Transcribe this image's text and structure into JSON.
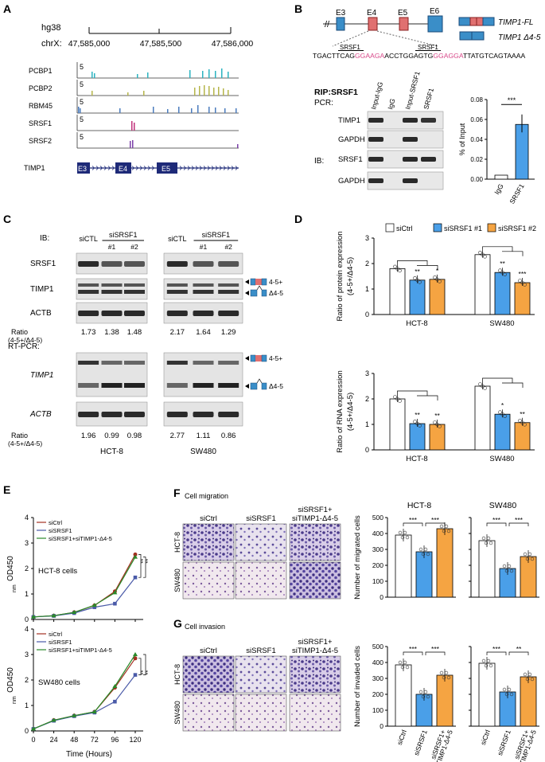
{
  "panels": {
    "A": {
      "letter": "A",
      "genome": "hg38",
      "chrom": "chrX:",
      "coords": [
        "47,585,000",
        "47,585,500",
        "47,586,000"
      ],
      "track_scale": "5",
      "tracks": [
        "PCBP1",
        "PCBP2",
        "RBM45",
        "SRSF1",
        "SRSF2"
      ],
      "gene": "TIMP1",
      "exons": [
        "E3",
        "E4",
        "E5"
      ],
      "track_colors": [
        "#2bb3c0",
        "#b5b54a",
        "#4a7bbd",
        "#c0307a",
        "#7b3fa8"
      ]
    },
    "B": {
      "letter": "B",
      "exons": [
        "E3",
        "E4",
        "E5",
        "E6"
      ],
      "isoform_fl": "TIMP1-FL",
      "isoform_d": "TIMP1 Δ4-5",
      "seq_left": "TGACTTCAG",
      "motif": "GGAAGA",
      "seq_mid": "ACCTGGAGTG",
      "motif2": "GGAGGA",
      "seq_right": "TTATGTCAGTAAAA",
      "motif_label": "SRSF1",
      "rip_title": "RIP:SRSF1",
      "pcr_label": "PCR:",
      "ib_label": "IB:",
      "lanes": [
        "Input-IgG",
        "IgG",
        "Input-SRSF1",
        "SRSF1"
      ],
      "rows": [
        "TIMP1",
        "GAPDH",
        "SRSF1",
        "GAPDH"
      ],
      "bar": {
        "ylabel": "% of Input",
        "yticks": [
          "0.00",
          "0.02",
          "0.04",
          "0.06",
          "0.08"
        ],
        "categories": [
          "IgG",
          "SRSF1"
        ],
        "sig": "***"
      }
    },
    "C": {
      "letter": "C",
      "ib": "IB:",
      "rtpcr": "RT-PCR:",
      "sictl": "siCTL",
      "sisrsf1": "siSRSF1",
      "n1": "#1",
      "n2": "#2",
      "ib_rows": [
        "SRSF1",
        "TIMP1",
        "ACTB"
      ],
      "pcr_rows": [
        "TIMP1",
        "ACTB"
      ],
      "ratio_label": "Ratio",
      "ratio_sub": "(4-5+/Δ4-5)",
      "protein_ratios": [
        "1.73",
        "1.38",
        "1.48",
        "2.17",
        "1.64",
        "1.29"
      ],
      "rna_ratios": [
        "1.96",
        "0.99",
        "0.98",
        "2.77",
        "1.11",
        "0.86"
      ],
      "cells": [
        "HCT-8",
        "SW480"
      ],
      "iso_plus": "4-5+",
      "iso_minus": "Δ4-5"
    },
    "D": {
      "letter": "D",
      "legend": [
        "siCtrl",
        "siSRSF1 #1",
        "siSRSF1 #2"
      ],
      "top_ylabel": "Ratio of  protein expression",
      "top_ysub": "(4-5+/Δ4-5)",
      "bot_ylabel": "Ratio of RNA expression",
      "bot_ysub": "(4-5+/Δ4-5)",
      "yticks": [
        "0",
        "1",
        "2",
        "3"
      ],
      "groups": [
        "HCT-8",
        "SW480"
      ],
      "sig_top": [
        "**",
        "*",
        "**",
        "***"
      ],
      "sig_bot": [
        "**",
        "**",
        "*",
        "**"
      ]
    },
    "E": {
      "letter": "E",
      "ylabel": "OD450",
      "ysub": "nm",
      "xlabel": "Time (Hours)",
      "xticks": [
        "0",
        "24",
        "48",
        "72",
        "96",
        "120"
      ],
      "legend": [
        "siCtrl",
        "siSRSF1",
        "siSRSF1+siTIMP1-Δ4-5"
      ],
      "cell1": "HCT-8 cells",
      "cell2": "SW480 cells",
      "yticks": [
        "0",
        "1",
        "2",
        "3",
        "4"
      ],
      "sig": [
        "**",
        "**"
      ]
    },
    "F": {
      "letter": "F",
      "title": "Cell migration",
      "conds": [
        "siCtrl",
        "siSRSF1",
        "siSRSF1+",
        "siTIMP1-Δ4-5"
      ],
      "rows": [
        "HCT-8",
        "SW480"
      ],
      "ylabel": "Number of migrated cells",
      "titles": [
        "HCT-8",
        "SW480"
      ],
      "yticks": [
        "0",
        "100",
        "200",
        "300",
        "400",
        "500"
      ],
      "sig": [
        "***",
        "***",
        "***",
        "***"
      ]
    },
    "G": {
      "letter": "G",
      "title": "Cell invasion",
      "ylabel": "Number of invaded cells",
      "yticks": [
        "0",
        "100",
        "200",
        "300",
        "400",
        "500"
      ],
      "sig": [
        "***",
        "***",
        "***",
        "**"
      ],
      "xcats": [
        "siCtrl",
        "siSRSF1",
        "siSRSF1+",
        "siTIMP1-Δ4-5"
      ]
    }
  },
  "chart_data": [
    {
      "type": "bar",
      "panel": "B",
      "categories": [
        "IgG",
        "SRSF1"
      ],
      "values": [
        0.004,
        0.055
      ],
      "ylim": [
        0,
        0.08
      ],
      "ylabel": "% of Input"
    },
    {
      "type": "bar",
      "panel": "D-protein",
      "categories": [
        "HCT-8",
        "SW480"
      ],
      "series": [
        {
          "name": "siCtrl",
          "values": [
            1.8,
            2.35
          ]
        },
        {
          "name": "siSRSF1 #1",
          "values": [
            1.35,
            1.65
          ]
        },
        {
          "name": "siSRSF1 #2",
          "values": [
            1.38,
            1.25
          ]
        }
      ],
      "ylim": [
        0,
        3
      ]
    },
    {
      "type": "bar",
      "panel": "D-RNA",
      "categories": [
        "HCT-8",
        "SW480"
      ],
      "series": [
        {
          "name": "siCtrl",
          "values": [
            2.0,
            2.5
          ]
        },
        {
          "name": "siSRSF1 #1",
          "values": [
            1.03,
            1.4
          ]
        },
        {
          "name": "siSRSF1 #2",
          "values": [
            1.0,
            1.07
          ]
        }
      ],
      "ylim": [
        0,
        3
      ]
    },
    {
      "type": "line",
      "panel": "E-HCT-8",
      "x": [
        0,
        24,
        48,
        72,
        96,
        120
      ],
      "ylim": [
        0,
        4
      ],
      "series": [
        {
          "name": "siCtrl",
          "values": [
            0.1,
            0.15,
            0.28,
            0.55,
            1.1,
            2.55
          ]
        },
        {
          "name": "siSRSF1",
          "values": [
            0.1,
            0.14,
            0.25,
            0.48,
            0.62,
            1.65
          ]
        },
        {
          "name": "siSRSF1+siTIMP1-Δ4-5",
          "values": [
            0.1,
            0.15,
            0.28,
            0.56,
            1.05,
            2.45
          ]
        }
      ]
    },
    {
      "type": "line",
      "panel": "E-SW480",
      "x": [
        0,
        24,
        48,
        72,
        96,
        120
      ],
      "ylim": [
        0,
        4
      ],
      "series": [
        {
          "name": "siCtrl",
          "values": [
            0.08,
            0.42,
            0.6,
            0.75,
            1.7,
            2.85
          ]
        },
        {
          "name": "siSRSF1",
          "values": [
            0.08,
            0.4,
            0.58,
            0.72,
            1.15,
            2.2
          ]
        },
        {
          "name": "siSRSF1+siTIMP1-Δ4-5",
          "values": [
            0.08,
            0.42,
            0.6,
            0.75,
            1.75,
            3.0
          ]
        }
      ]
    },
    {
      "type": "bar",
      "panel": "F-HCT-8",
      "categories": [
        "siCtrl",
        "siSRSF1",
        "siSRSF1+siTIMP1-Δ4-5"
      ],
      "values": [
        390,
        285,
        430
      ],
      "ylim": [
        0,
        500
      ]
    },
    {
      "type": "bar",
      "panel": "F-SW480",
      "categories": [
        "siCtrl",
        "siSRSF1",
        "siSRSF1+siTIMP1-Δ4-5"
      ],
      "values": [
        355,
        180,
        255
      ],
      "ylim": [
        0,
        500
      ]
    },
    {
      "type": "bar",
      "panel": "G-HCT-8",
      "categories": [
        "siCtrl",
        "siSRSF1",
        "siSRSF1+siTIMP1-Δ4-5"
      ],
      "values": [
        385,
        200,
        320
      ],
      "ylim": [
        0,
        500
      ]
    },
    {
      "type": "bar",
      "panel": "G-SW480",
      "categories": [
        "siCtrl",
        "siSRSF1",
        "siSRSF1+siTIMP1-Δ4-5"
      ],
      "values": [
        395,
        215,
        310
      ],
      "ylim": [
        0,
        500
      ]
    }
  ]
}
